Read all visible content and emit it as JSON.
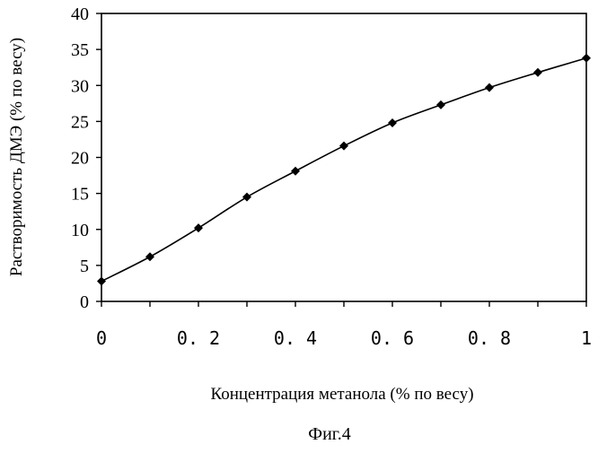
{
  "figure": {
    "caption": "Фиг.4"
  },
  "chart_data": {
    "type": "line",
    "title": "",
    "xlabel": "Концентрация метанола (% по весу)",
    "ylabel": "Растворимость ДМЭ (% по весу)",
    "xlim": [
      0,
      1
    ],
    "ylim": [
      0,
      40
    ],
    "x_ticks": [
      "0",
      "0. 2",
      "0. 4",
      "0. 6",
      "0. 8",
      "1"
    ],
    "y_ticks": [
      "0",
      "5",
      "10",
      "15",
      "20",
      "25",
      "30",
      "35",
      "40"
    ],
    "grid": false,
    "legend": "none",
    "marker": "diamond",
    "series": [
      {
        "x": [
          0,
          0.1,
          0.2,
          0.3,
          0.4,
          0.5,
          0.6,
          0.7,
          0.8,
          0.9,
          1.0
        ],
        "y": [
          2.8,
          6.2,
          10.2,
          14.5,
          18.1,
          21.6,
          24.8,
          27.3,
          29.7,
          31.8,
          33.8
        ]
      }
    ]
  }
}
